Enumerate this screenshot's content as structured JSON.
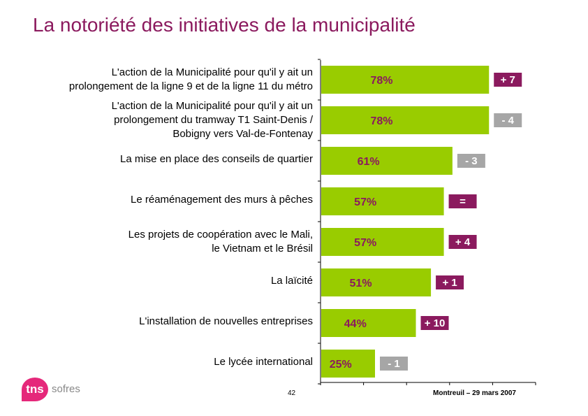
{
  "title": "La notoriété des initiatives de la municipalité",
  "footer": {
    "page_number": "42",
    "date": "Montreuil – 29 mars 2007",
    "logo_mark": "tns",
    "logo_text": "sofres"
  },
  "colors": {
    "bar": "#99cc00",
    "value_text": "#8b1a5e",
    "delta_positive": "#8b1a5e",
    "delta_neutral": "#a6a6a6",
    "title": "#8b1a5e"
  },
  "chart_data": {
    "type": "bar",
    "orientation": "horizontal",
    "categories": [
      "L'action de la Municipalité pour qu'il y ait un prolongement de la ligne 9 et de la ligne 11 du métro",
      "L'action de la Municipalité pour qu'il y ait un prolongement du tramway T1 Saint-Denis / Bobigny vers Val-de-Fontenay",
      "La mise en place des conseils de quartier",
      "Le réaménagement des murs à pêches",
      "Les projets de coopération avec le Mali, le Vietnam et le Brésil",
      "La laïcité",
      "L'installation de nouvelles entreprises",
      "Le lycée international"
    ],
    "category_lines": [
      [
        "L'action de la Municipalité pour qu'il y ait un",
        "prolongement de la ligne 9 et de la ligne 11 du métro"
      ],
      [
        "L'action de la Municipalité pour qu'il y ait un",
        "prolongement du tramway T1 Saint-Denis /",
        "Bobigny vers Val-de-Fontenay"
      ],
      [
        "La mise en place des conseils de quartier"
      ],
      [
        "Le réaménagement des murs à pêches"
      ],
      [
        "Les projets de coopération avec le Mali,",
        "le Vietnam et le Brésil"
      ],
      [
        "La laïcité"
      ],
      [
        "L'installation de nouvelles entreprises"
      ],
      [
        "Le lycée international"
      ]
    ],
    "values": [
      78,
      78,
      61,
      57,
      57,
      51,
      44,
      25
    ],
    "value_labels": [
      "78%",
      "78%",
      "61%",
      "57%",
      "57%",
      "51%",
      "44%",
      "25%"
    ],
    "deltas": [
      "+ 7",
      "- 4",
      "- 3",
      "=",
      "+ 4",
      "+ 1",
      "+ 10",
      "- 1"
    ],
    "delta_style": [
      "up",
      "down",
      "down",
      "up",
      "up",
      "up",
      "up",
      "down"
    ],
    "xlim": [
      0,
      100
    ],
    "grid": false
  }
}
